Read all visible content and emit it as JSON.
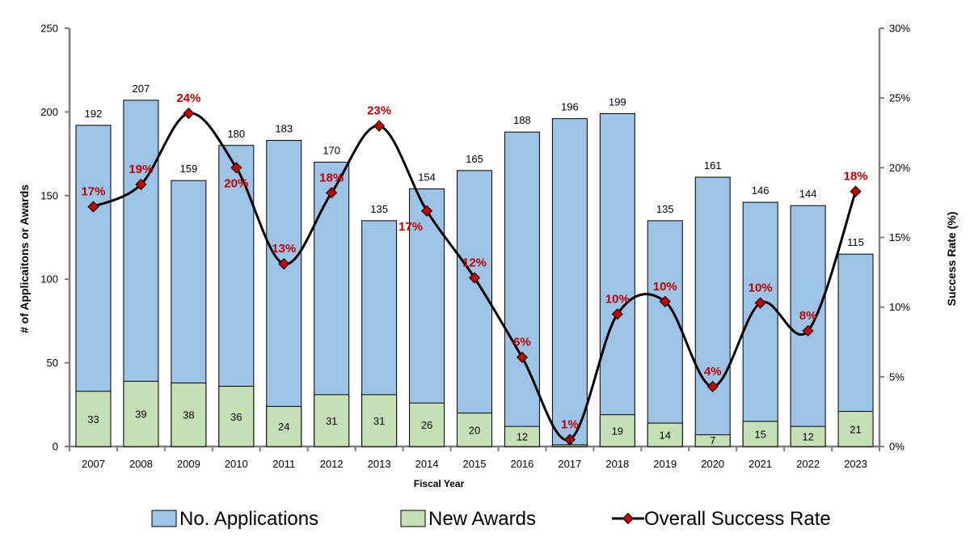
{
  "chart_data": {
    "type": "bar",
    "categories": [
      "2007",
      "2008",
      "2009",
      "2010",
      "2011",
      "2012",
      "2013",
      "2014",
      "2015",
      "2016",
      "2017",
      "2018",
      "2019",
      "2020",
      "2021",
      "2022",
      "2023"
    ],
    "series": [
      {
        "name": "No. Applications",
        "type": "bar",
        "axis": "left",
        "color": "#9dc3e6",
        "values": [
          192,
          207,
          159,
          180,
          183,
          170,
          135,
          154,
          165,
          188,
          196,
          199,
          135,
          161,
          146,
          144,
          115
        ]
      },
      {
        "name": "New Awards",
        "type": "bar",
        "axis": "left",
        "color": "#c5e0b4",
        "values": [
          33,
          39,
          38,
          36,
          24,
          31,
          31,
          26,
          20,
          12,
          1,
          19,
          14,
          7,
          15,
          12,
          21
        ]
      },
      {
        "name": "Overall Success Rate",
        "type": "line",
        "axis": "right",
        "color": "#000000",
        "marker_color": "#c00000",
        "values": [
          17.2,
          18.8,
          23.9,
          20.0,
          13.1,
          18.2,
          23.0,
          16.9,
          12.1,
          6.4,
          0.5,
          9.5,
          10.4,
          4.3,
          10.3,
          8.3,
          18.3
        ],
        "labels": [
          "17%",
          "19%",
          "24%",
          "20%",
          "13%",
          "18%",
          "23%",
          "17%",
          "12%",
          "6%",
          "1%",
          "10%",
          "10%",
          "4%",
          "10%",
          "8%",
          "18%"
        ]
      }
    ],
    "xlabel": "Fiscal Year",
    "ylabel": "# of Applicaitons or Awards",
    "y2label": "Success Rate (%)",
    "ylim": [
      0,
      250
    ],
    "yticks": [
      "0",
      "50",
      "100",
      "150",
      "200",
      "250"
    ],
    "y2lim": [
      0,
      30
    ],
    "y2ticks": [
      "0%",
      "5%",
      "10%",
      "15%",
      "20%",
      "25%",
      "30%"
    ],
    "grid": false,
    "legend_position": "bottom"
  }
}
